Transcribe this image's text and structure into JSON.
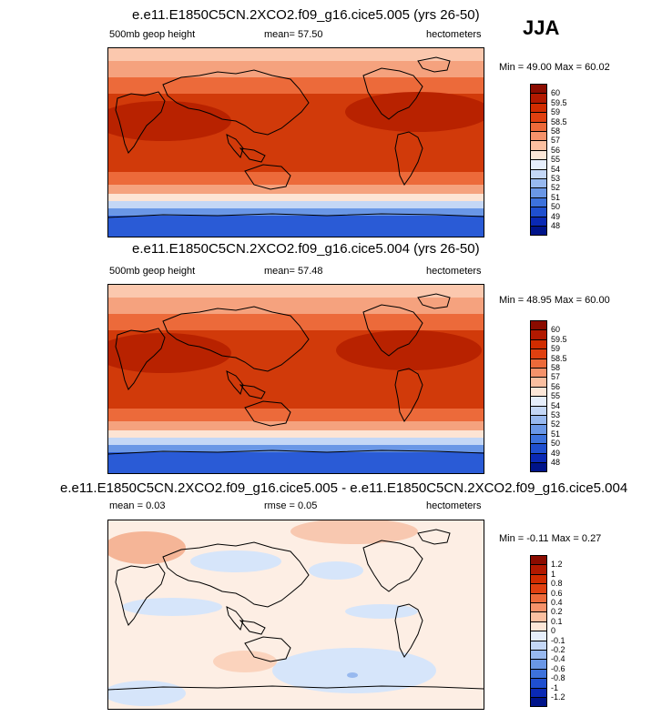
{
  "season": "JJA",
  "panels": [
    {
      "title": "e.e11.E1850C5CN.2XCO2.f09_g16.cice5.005 (yrs 26-50)",
      "left_label": "500mb geop height",
      "mean_label": "mean=",
      "mean_value": "57.50",
      "units": "hectometers",
      "minmax": "Min = 49.00 Max = 60.02",
      "colorbar_labels": [
        "60",
        "59.5",
        "59",
        "58.5",
        "58",
        "57",
        "56",
        "55",
        "54",
        "53",
        "52",
        "51",
        "50",
        "49",
        "48"
      ],
      "colorbar_colors": [
        "#8b0c00",
        "#b21900",
        "#d12c00",
        "#e04010",
        "#ec6a3a",
        "#f5926a",
        "#fbbfa0",
        "#fde7d8",
        "#e6eefb",
        "#c4d7f6",
        "#98b9ef",
        "#6a97e6",
        "#3d72dc",
        "#1f4fcf",
        "#0a29b4",
        "#00148a"
      ]
    },
    {
      "title": "e.e11.E1850C5CN.2XCO2.f09_g16.cice5.004 (yrs 26-50)",
      "left_label": "500mb geop height",
      "mean_label": "mean=",
      "mean_value": "57.48",
      "units": "hectometers",
      "minmax": "Min = 48.95 Max = 60.00",
      "colorbar_labels": [
        "60",
        "59.5",
        "59",
        "58.5",
        "58",
        "57",
        "56",
        "55",
        "54",
        "53",
        "52",
        "51",
        "50",
        "49",
        "48"
      ],
      "colorbar_colors": [
        "#8b0c00",
        "#b21900",
        "#d12c00",
        "#e04010",
        "#ec6a3a",
        "#f5926a",
        "#fbbfa0",
        "#fde7d8",
        "#e6eefb",
        "#c4d7f6",
        "#98b9ef",
        "#6a97e6",
        "#3d72dc",
        "#1f4fcf",
        "#0a29b4",
        "#00148a"
      ]
    },
    {
      "title": "e.e11.E1850C5CN.2XCO2.f09_g16.cice5.005 - e.e11.E1850C5CN.2XCO2.f09_g16.cice5.004",
      "left_label": "mean =",
      "left_value": "0.03",
      "mean_label": "rmse =",
      "mean_value": "0.05",
      "units": "hectometers",
      "minmax": "Min = -0.11 Max = 0.27",
      "colorbar_labels": [
        "1.2",
        "1",
        "0.8",
        "0.6",
        "0.4",
        "0.2",
        "0.1",
        "0",
        "-0.1",
        "-0.2",
        "-0.4",
        "-0.6",
        "-0.8",
        "-1",
        "-1.2"
      ],
      "colorbar_colors": [
        "#8b0c00",
        "#b21900",
        "#d12c00",
        "#e04010",
        "#ec6a3a",
        "#f5926a",
        "#fbbfa0",
        "#fde7d8",
        "#e6eefb",
        "#c4d7f6",
        "#98b9ef",
        "#6a97e6",
        "#3d72dc",
        "#1f4fcf",
        "#0a29b4",
        "#00148a"
      ]
    }
  ],
  "field_colors": {
    "deep_red": "#a81c00",
    "red": "#d13a0a",
    "orange": "#ec6a3a",
    "salmon": "#f5a27e",
    "pale": "#fde4d4",
    "pale_blue": "#d8e6fa",
    "light_blue": "#98b9ef",
    "blue": "#3d72dc",
    "dark_blue": "#1f4fcf",
    "diff_pos": "#fbd3bd",
    "diff_pale": "#fdeee4",
    "diff_neg": "#d6e5fa"
  }
}
